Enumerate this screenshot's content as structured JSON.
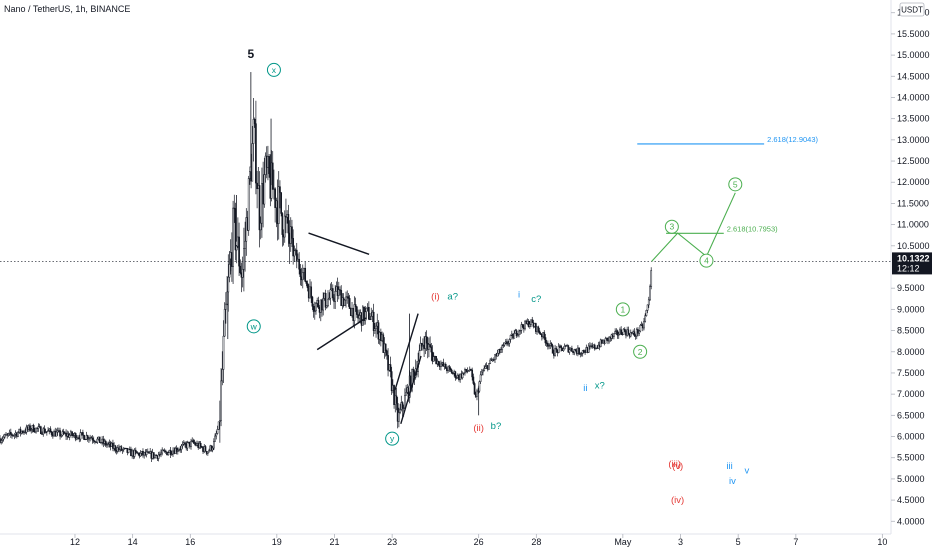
{
  "header": {
    "title": "Nano / TetherUS, 1h, BINANCE"
  },
  "currency_label": "USDT",
  "price_tag": {
    "price": "10.1322",
    "countdown": "12:12"
  },
  "colors": {
    "candle": "#131722",
    "green": "#4caf50",
    "red": "#e53935",
    "blue": "#2196f3",
    "teal": "#009688",
    "fib_blue": "#2196f3"
  },
  "chart_data": {
    "type": "candlestick",
    "title": "Nano / TetherUS, 1h, BINANCE",
    "ylim": [
      3.7,
      16.3
    ],
    "y_ticks": [
      "16.0000",
      "15.5000",
      "15.0000",
      "14.5000",
      "14.0000",
      "13.5000",
      "13.0000",
      "12.5000",
      "12.0000",
      "11.5000",
      "11.0000",
      "10.5000",
      "9.5000",
      "9.0000",
      "8.5000",
      "8.0000",
      "7.5000",
      "7.0000",
      "6.5000",
      "6.0000",
      "5.5000",
      "5.0000",
      "4.5000",
      "4.0000"
    ],
    "x_ticks": [
      "12",
      "14",
      "16",
      "19",
      "21",
      "23",
      "26",
      "28",
      "May",
      "3",
      "5",
      "7",
      "10"
    ],
    "x_tick_days": [
      12,
      14,
      16,
      19,
      21,
      23,
      26,
      28,
      31,
      33,
      35,
      37,
      40
    ],
    "x_range_days": [
      9.4,
      40.3
    ],
    "current_price": 10.1322,
    "price_path": [
      [
        9.4,
        5.95
      ],
      [
        10.5,
        6.2
      ],
      [
        11.5,
        6.05
      ],
      [
        12.5,
        6.0
      ],
      [
        13.3,
        5.75
      ],
      [
        14.0,
        5.6
      ],
      [
        14.8,
        5.55
      ],
      [
        15.5,
        5.7
      ],
      [
        16.1,
        5.85
      ],
      [
        16.6,
        5.65
      ],
      [
        16.8,
        5.8
      ],
      [
        17.0,
        6.3
      ],
      [
        17.2,
        8.6
      ],
      [
        17.5,
        11.0
      ],
      [
        17.8,
        9.8
      ],
      [
        18.0,
        11.5
      ],
      [
        18.2,
        13.2
      ],
      [
        18.4,
        11.3
      ],
      [
        18.6,
        12.2
      ],
      [
        18.9,
        11.8
      ],
      [
        19.2,
        11.2
      ],
      [
        19.6,
        10.3
      ],
      [
        20.0,
        9.7
      ],
      [
        20.3,
        9.1
      ],
      [
        20.7,
        9.2
      ],
      [
        21.1,
        9.4
      ],
      [
        21.5,
        9.1
      ],
      [
        21.8,
        8.8
      ],
      [
        22.2,
        8.9
      ],
      [
        22.6,
        8.4
      ],
      [
        23.0,
        7.2
      ],
      [
        23.2,
        6.4
      ],
      [
        23.5,
        7.0
      ],
      [
        23.8,
        7.6
      ],
      [
        24.1,
        8.3
      ],
      [
        24.5,
        7.8
      ],
      [
        24.9,
        7.6
      ],
      [
        25.3,
        7.4
      ],
      [
        25.7,
        7.6
      ],
      [
        25.9,
        6.9
      ],
      [
        26.1,
        7.5
      ],
      [
        26.6,
        7.9
      ],
      [
        27.1,
        8.3
      ],
      [
        27.5,
        8.6
      ],
      [
        27.8,
        8.7
      ],
      [
        28.2,
        8.4
      ],
      [
        28.6,
        8.0
      ],
      [
        29.0,
        8.1
      ],
      [
        29.5,
        8.0
      ],
      [
        30.0,
        8.1
      ],
      [
        30.5,
        8.3
      ],
      [
        31.0,
        8.5
      ],
      [
        31.4,
        8.4
      ],
      [
        31.7,
        8.6
      ],
      [
        31.9,
        9.2
      ],
      [
        32.0,
        10.1322
      ]
    ],
    "spikes": [
      [
        18.1,
        14.6
      ],
      [
        17.6,
        11.7
      ],
      [
        18.8,
        13.5
      ],
      [
        17.4,
        9.9
      ],
      [
        23.6,
        8.9
      ],
      [
        26.0,
        6.5
      ],
      [
        17.3,
        8.3
      ]
    ],
    "annotations": [
      {
        "text": "5",
        "x": 18.1,
        "y": 15.0,
        "color": "#131722",
        "style": "plain"
      },
      {
        "text": "x",
        "x": 18.9,
        "y": 14.65,
        "color": "#009688",
        "style": "circle"
      },
      {
        "text": "w",
        "x": 18.2,
        "y": 8.6,
        "color": "#009688",
        "style": "circle"
      },
      {
        "text": "y",
        "x": 23.0,
        "y": 5.95,
        "color": "#009688",
        "style": "circle"
      },
      {
        "text": "(i)",
        "x": 24.5,
        "y": 9.3,
        "color": "#e53935",
        "style": "plain"
      },
      {
        "text": "a?",
        "x": 25.1,
        "y": 9.3,
        "color": "#009688",
        "style": "plain"
      },
      {
        "text": "(ii)",
        "x": 26.0,
        "y": 6.2,
        "color": "#e53935",
        "style": "plain"
      },
      {
        "text": "b?",
        "x": 26.6,
        "y": 6.25,
        "color": "#009688",
        "style": "plain"
      },
      {
        "text": "i",
        "x": 27.4,
        "y": 9.35,
        "color": "#2196f3",
        "style": "plain"
      },
      {
        "text": "c?",
        "x": 28.0,
        "y": 9.25,
        "color": "#009688",
        "style": "plain"
      },
      {
        "text": "ii",
        "x": 29.7,
        "y": 7.15,
        "color": "#2196f3",
        "style": "plain"
      },
      {
        "text": "x?",
        "x": 30.2,
        "y": 7.2,
        "color": "#009688",
        "style": "plain"
      },
      {
        "text": "1",
        "x": 31.0,
        "y": 9.0,
        "color": "#4caf50",
        "style": "circle"
      },
      {
        "text": "2",
        "x": 31.6,
        "y": 8.0,
        "color": "#4caf50",
        "style": "circle"
      },
      {
        "text": "3",
        "x": 32.7,
        "y": 10.95,
        "color": "#4caf50",
        "style": "circle"
      },
      {
        "text": "4",
        "x": 33.9,
        "y": 10.15,
        "color": "#4caf50",
        "style": "circle"
      },
      {
        "text": "5",
        "x": 34.9,
        "y": 11.95,
        "color": "#4caf50",
        "style": "circle"
      },
      {
        "text": "(iii)",
        "x": 32.8,
        "y": 5.35,
        "color": "#e53935",
        "style": "plain"
      },
      {
        "text": "(v)",
        "x": 32.9,
        "y": 5.3,
        "color": "#e53935",
        "style": "plain"
      },
      {
        "text": "(iv)",
        "x": 32.9,
        "y": 4.5,
        "color": "#e53935",
        "style": "plain"
      },
      {
        "text": "iii",
        "x": 34.7,
        "y": 5.3,
        "color": "#2196f3",
        "style": "plain"
      },
      {
        "text": "iv",
        "x": 34.8,
        "y": 4.95,
        "color": "#2196f3",
        "style": "plain"
      },
      {
        "text": "v",
        "x": 35.3,
        "y": 5.2,
        "color": "#2196f3",
        "style": "plain"
      }
    ],
    "fib_levels": [
      {
        "label": "2.618(12.9043)",
        "value": 12.9043,
        "x0": 31.5,
        "x1": 35.9,
        "color": "#2196f3"
      },
      {
        "label": "2.618(10.7953)",
        "value": 10.7953,
        "x0": 32.5,
        "x1": 34.5,
        "color": "#4caf50"
      }
    ],
    "projection_path": [
      [
        32.0,
        10.1322
      ],
      [
        32.9,
        10.8
      ],
      [
        33.9,
        10.25
      ],
      [
        34.9,
        11.75
      ]
    ],
    "triangle_lines": [
      [
        [
          20.1,
          10.8
        ],
        [
          22.2,
          10.3
        ]
      ],
      [
        [
          20.4,
          8.05
        ],
        [
          22.1,
          8.8
        ]
      ],
      [
        [
          23.1,
          7.1
        ],
        [
          23.9,
          8.9
        ]
      ],
      [
        [
          23.3,
          6.3
        ],
        [
          24.0,
          7.9
        ]
      ]
    ]
  }
}
